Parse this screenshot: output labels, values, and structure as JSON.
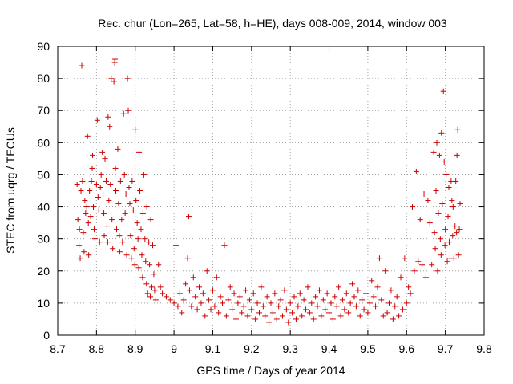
{
  "chart_data": {
    "type": "scatter",
    "title": "Rec. chur (Lon=265, Lat=58, h=HE), days 008-009, 2014, window 003",
    "xlabel": "GPS time / Days of year 2014",
    "ylabel": "STEC from uqrg / TECUs",
    "xlim": [
      8.7,
      9.8
    ],
    "ylim": [
      0,
      90
    ],
    "xticks": [
      "8.7",
      "8.8",
      "8.9",
      "9",
      "9.1",
      "9.2",
      "9.3",
      "9.4",
      "9.5",
      "9.6",
      "9.7",
      "9.8"
    ],
    "yticks": [
      "0",
      "10",
      "20",
      "30",
      "40",
      "50",
      "60",
      "70",
      "80",
      "90"
    ],
    "marker": "+",
    "color": "#cc0000",
    "series": [
      {
        "name": "STEC",
        "points": [
          [
            8.75,
            47
          ],
          [
            8.752,
            36
          ],
          [
            8.755,
            28
          ],
          [
            8.756,
            33
          ],
          [
            8.758,
            24
          ],
          [
            8.76,
            45
          ],
          [
            8.762,
            84
          ],
          [
            8.764,
            48
          ],
          [
            8.766,
            32
          ],
          [
            8.768,
            26
          ],
          [
            8.77,
            42
          ],
          [
            8.772,
            38
          ],
          [
            8.775,
            40
          ],
          [
            8.777,
            62
          ],
          [
            8.779,
            35
          ],
          [
            8.78,
            25
          ],
          [
            8.782,
            45
          ],
          [
            8.785,
            37
          ],
          [
            8.787,
            48
          ],
          [
            8.789,
            52
          ],
          [
            8.79,
            56
          ],
          [
            8.792,
            40
          ],
          [
            8.794,
            33
          ],
          [
            8.796,
            30
          ],
          [
            8.8,
            47
          ],
          [
            8.802,
            67
          ],
          [
            8.804,
            43
          ],
          [
            8.806,
            39
          ],
          [
            8.808,
            29
          ],
          [
            8.81,
            46
          ],
          [
            8.812,
            50
          ],
          [
            8.815,
            57
          ],
          [
            8.817,
            44
          ],
          [
            8.819,
            38
          ],
          [
            8.82,
            31
          ],
          [
            8.822,
            55
          ],
          [
            8.825,
            48
          ],
          [
            8.827,
            34
          ],
          [
            8.829,
            29
          ],
          [
            8.83,
            68
          ],
          [
            8.832,
            42
          ],
          [
            8.834,
            65
          ],
          [
            8.836,
            47
          ],
          [
            8.838,
            80
          ],
          [
            8.84,
            36
          ],
          [
            8.842,
            27
          ],
          [
            8.845,
            79
          ],
          [
            8.847,
            85
          ],
          [
            8.848,
            86
          ],
          [
            8.849,
            52
          ],
          [
            8.85,
            45
          ],
          [
            8.852,
            33
          ],
          [
            8.855,
            58
          ],
          [
            8.857,
            41
          ],
          [
            8.859,
            31
          ],
          [
            8.86,
            26
          ],
          [
            8.862,
            48
          ],
          [
            8.865,
            36
          ],
          [
            8.867,
            29
          ],
          [
            8.87,
            69
          ],
          [
            8.872,
            50
          ],
          [
            8.874,
            38
          ],
          [
            8.876,
            44
          ],
          [
            8.878,
            25
          ],
          [
            8.88,
            80
          ],
          [
            8.882,
            70
          ],
          [
            8.884,
            46
          ],
          [
            8.886,
            41
          ],
          [
            8.888,
            31
          ],
          [
            8.89,
            24
          ],
          [
            8.892,
            48
          ],
          [
            8.895,
            39
          ],
          [
            8.897,
            27
          ],
          [
            8.899,
            22
          ],
          [
            8.9,
            64
          ],
          [
            8.902,
            42
          ],
          [
            8.905,
            35
          ],
          [
            8.907,
            30
          ],
          [
            8.909,
            21
          ],
          [
            8.91,
            57
          ],
          [
            8.912,
            45
          ],
          [
            8.915,
            33
          ],
          [
            8.917,
            25
          ],
          [
            8.919,
            18
          ],
          [
            8.92,
            38
          ],
          [
            8.922,
            50
          ],
          [
            8.925,
            30
          ],
          [
            8.927,
            23
          ],
          [
            8.929,
            16
          ],
          [
            8.93,
            40
          ],
          [
            8.932,
            13
          ],
          [
            8.935,
            29
          ],
          [
            8.937,
            22
          ],
          [
            8.939,
            12
          ],
          [
            8.94,
            36
          ],
          [
            8.943,
            15
          ],
          [
            8.945,
            28
          ],
          [
            8.948,
            19
          ],
          [
            8.95,
            14
          ],
          [
            8.953,
            11
          ],
          [
            8.96,
            22
          ],
          [
            8.965,
            15
          ],
          [
            8.97,
            13
          ],
          [
            8.98,
            12
          ],
          [
            8.99,
            11
          ],
          [
            9.0,
            10
          ],
          [
            9.005,
            28
          ],
          [
            9.01,
            9
          ],
          [
            9.015,
            13
          ],
          [
            9.02,
            7
          ],
          [
            9.025,
            11
          ],
          [
            9.03,
            16
          ],
          [
            9.035,
            24
          ],
          [
            9.038,
            37
          ],
          [
            9.04,
            14
          ],
          [
            9.045,
            9
          ],
          [
            9.05,
            18
          ],
          [
            9.055,
            12
          ],
          [
            9.06,
            8
          ],
          [
            9.065,
            15
          ],
          [
            9.07,
            10
          ],
          [
            9.075,
            13
          ],
          [
            9.08,
            6
          ],
          [
            9.085,
            20
          ],
          [
            9.09,
            11
          ],
          [
            9.095,
            8
          ],
          [
            9.1,
            14
          ],
          [
            9.105,
            9
          ],
          [
            9.11,
            18
          ],
          [
            9.115,
            7
          ],
          [
            9.12,
            12
          ],
          [
            9.125,
            10
          ],
          [
            9.13,
            28
          ],
          [
            9.135,
            6
          ],
          [
            9.14,
            11
          ],
          [
            9.145,
            15
          ],
          [
            9.15,
            8
          ],
          [
            9.155,
            13
          ],
          [
            9.16,
            5
          ],
          [
            9.165,
            10
          ],
          [
            9.17,
            12
          ],
          [
            9.175,
            7
          ],
          [
            9.18,
            9
          ],
          [
            9.185,
            14
          ],
          [
            9.19,
            6
          ],
          [
            9.195,
            11
          ],
          [
            9.2,
            8
          ],
          [
            9.205,
            13
          ],
          [
            9.21,
            5
          ],
          [
            9.215,
            10
          ],
          [
            9.22,
            7
          ],
          [
            9.225,
            15
          ],
          [
            9.23,
            9
          ],
          [
            9.235,
            6
          ],
          [
            9.24,
            12
          ],
          [
            9.245,
            4
          ],
          [
            9.25,
            10
          ],
          [
            9.255,
            7
          ],
          [
            9.26,
            13
          ],
          [
            9.265,
            5
          ],
          [
            9.27,
            9
          ],
          [
            9.275,
            11
          ],
          [
            9.28,
            6
          ],
          [
            9.285,
            14
          ],
          [
            9.29,
            8
          ],
          [
            9.295,
            4
          ],
          [
            9.3,
            10
          ],
          [
            9.305,
            7
          ],
          [
            9.31,
            12
          ],
          [
            9.315,
            5
          ],
          [
            9.32,
            9
          ],
          [
            9.325,
            13
          ],
          [
            9.33,
            6
          ],
          [
            9.335,
            11
          ],
          [
            9.34,
            8
          ],
          [
            9.345,
            15
          ],
          [
            9.35,
            7
          ],
          [
            9.355,
            10
          ],
          [
            9.36,
            5
          ],
          [
            9.365,
            12
          ],
          [
            9.37,
            9
          ],
          [
            9.375,
            14
          ],
          [
            9.38,
            6
          ],
          [
            9.385,
            11
          ],
          [
            9.39,
            8
          ],
          [
            9.395,
            13
          ],
          [
            9.4,
            7
          ],
          [
            9.405,
            10
          ],
          [
            9.41,
            5
          ],
          [
            9.415,
            12
          ],
          [
            9.42,
            9
          ],
          [
            9.425,
            15
          ],
          [
            9.43,
            6
          ],
          [
            9.435,
            11
          ],
          [
            9.44,
            8
          ],
          [
            9.445,
            13
          ],
          [
            9.45,
            7
          ],
          [
            9.455,
            10
          ],
          [
            9.46,
            16
          ],
          [
            9.465,
            12
          ],
          [
            9.47,
            9
          ],
          [
            9.475,
            14
          ],
          [
            9.48,
            6
          ],
          [
            9.485,
            11
          ],
          [
            9.49,
            8
          ],
          [
            9.495,
            13
          ],
          [
            9.5,
            7
          ],
          [
            9.505,
            10
          ],
          [
            9.51,
            17
          ],
          [
            9.515,
            12
          ],
          [
            9.52,
            9
          ],
          [
            9.525,
            15
          ],
          [
            9.53,
            24
          ],
          [
            9.535,
            11
          ],
          [
            9.54,
            6
          ],
          [
            9.545,
            20
          ],
          [
            9.55,
            7
          ],
          [
            9.555,
            10
          ],
          [
            9.56,
            14
          ],
          [
            9.565,
            5
          ],
          [
            9.57,
            9
          ],
          [
            9.575,
            12
          ],
          [
            9.58,
            6
          ],
          [
            9.585,
            18
          ],
          [
            9.59,
            8
          ],
          [
            9.595,
            24
          ],
          [
            9.6,
            10
          ],
          [
            9.605,
            15
          ],
          [
            9.61,
            13
          ],
          [
            9.615,
            40
          ],
          [
            9.62,
            20
          ],
          [
            9.625,
            51
          ],
          [
            9.63,
            23
          ],
          [
            9.635,
            36
          ],
          [
            9.64,
            22
          ],
          [
            9.645,
            44
          ],
          [
            9.65,
            18
          ],
          [
            9.655,
            42
          ],
          [
            9.66,
            35
          ],
          [
            9.665,
            22
          ],
          [
            9.67,
            57
          ],
          [
            9.672,
            32
          ],
          [
            9.674,
            27
          ],
          [
            9.676,
            45
          ],
          [
            9.678,
            60
          ],
          [
            9.68,
            20
          ],
          [
            9.682,
            38
          ],
          [
            9.685,
            56
          ],
          [
            9.687,
            30
          ],
          [
            9.689,
            25
          ],
          [
            9.69,
            63
          ],
          [
            9.692,
            41
          ],
          [
            9.695,
            76
          ],
          [
            9.697,
            54
          ],
          [
            9.699,
            28
          ],
          [
            9.7,
            33
          ],
          [
            9.702,
            50
          ],
          [
            9.705,
            23
          ],
          [
            9.707,
            37
          ],
          [
            9.709,
            46
          ],
          [
            9.71,
            29
          ],
          [
            9.712,
            24
          ],
          [
            9.715,
            48
          ],
          [
            9.717,
            42
          ],
          [
            9.719,
            31
          ],
          [
            9.72,
            40
          ],
          [
            9.722,
            24
          ],
          [
            9.725,
            34
          ],
          [
            9.727,
            48
          ],
          [
            9.729,
            32
          ],
          [
            9.73,
            56
          ],
          [
            9.732,
            64
          ],
          [
            9.734,
            25
          ],
          [
            9.736,
            33
          ],
          [
            9.738,
            41
          ]
        ]
      }
    ]
  }
}
